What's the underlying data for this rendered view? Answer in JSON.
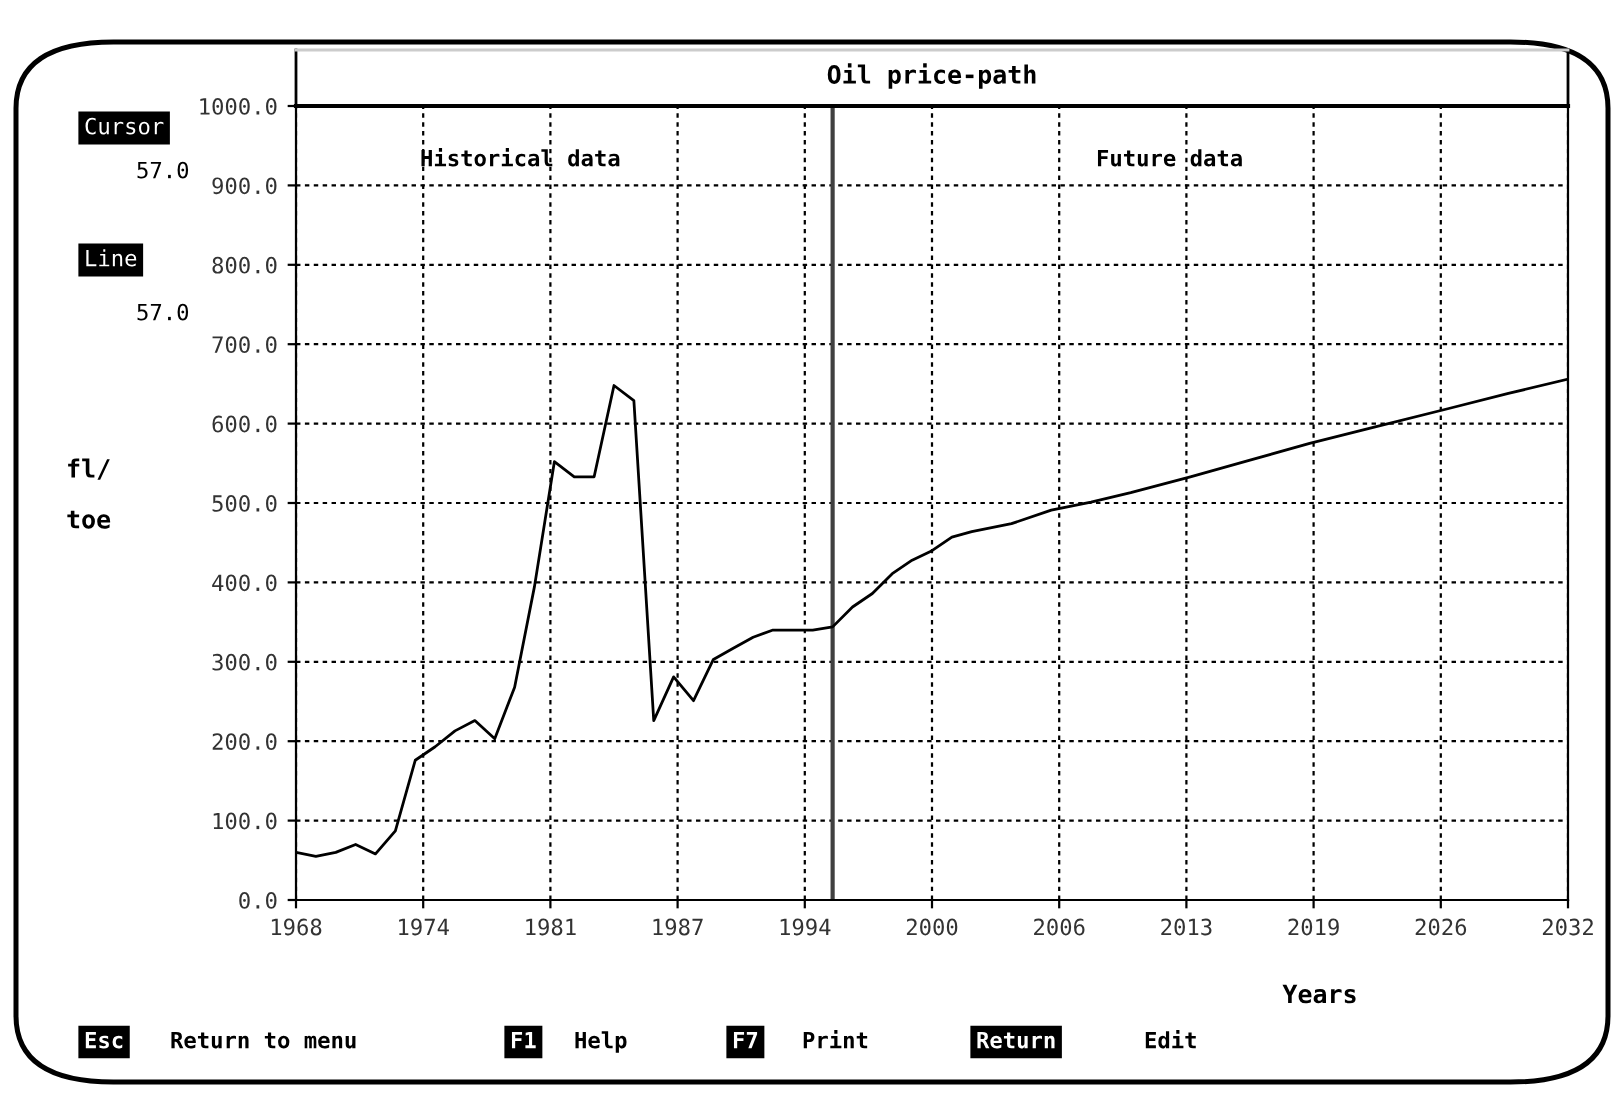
{
  "chart_data": {
    "type": "line",
    "title": "Oil price-path",
    "xlabel": "Years",
    "ylabel": "fl/\ntoe",
    "x": [
      1968,
      1969,
      1970,
      1971,
      1972,
      1973,
      1974,
      1975,
      1976,
      1977,
      1978,
      1979,
      1980,
      1981,
      1982,
      1983,
      1984,
      1985,
      1986,
      1987,
      1988,
      1989,
      1990,
      1991,
      1992,
      1993,
      1994,
      1995,
      1996,
      1997,
      1998,
      1999,
      2000,
      2001,
      2002,
      2004,
      2006,
      2008,
      2010,
      2013,
      2016,
      2019,
      2022,
      2026,
      2029,
      2032
    ],
    "series": [
      {
        "color": "#000000",
        "values": [
          60,
          55,
          60,
          70,
          58,
          87,
          176,
          193,
          213,
          226,
          203,
          268,
          395,
          552,
          533,
          533,
          648,
          629,
          226,
          281,
          251,
          303,
          317,
          331,
          340,
          340,
          340,
          344,
          369,
          386,
          411,
          428,
          440,
          457,
          464,
          474,
          491,
          501,
          513,
          533,
          554,
          575,
          594,
          619,
          638,
          656
        ]
      }
    ],
    "xlim": [
      1968,
      2032
    ],
    "xticks": [
      {
        "value": 1968,
        "label": "1968"
      },
      {
        "value": 1974.4,
        "label": "1974"
      },
      {
        "value": 1980.8,
        "label": "1981"
      },
      {
        "value": 1987.2,
        "label": "1987"
      },
      {
        "value": 1993.6,
        "label": "1994"
      },
      {
        "value": 2000,
        "label": "2000"
      },
      {
        "value": 2006.4,
        "label": "2006"
      },
      {
        "value": 2012.8,
        "label": "2013"
      },
      {
        "value": 2019.2,
        "label": "2019"
      },
      {
        "value": 2025.6,
        "label": "2026"
      },
      {
        "value": 2032,
        "label": "2032"
      }
    ],
    "ylim": [
      0,
      1000
    ],
    "yticks": [
      {
        "value": 0,
        "label": "0.0"
      },
      {
        "value": 100,
        "label": "100.0"
      },
      {
        "value": 200,
        "label": "200.0"
      },
      {
        "value": 300,
        "label": "300.0"
      },
      {
        "value": 400,
        "label": "400.0"
      },
      {
        "value": 500,
        "label": "500.0"
      },
      {
        "value": 600,
        "label": "600.0"
      },
      {
        "value": 700,
        "label": "700.0"
      },
      {
        "value": 800,
        "label": "800.0"
      },
      {
        "value": 900,
        "label": "900.0"
      },
      {
        "value": 1000,
        "label": "1000.0"
      }
    ],
    "ref_lines": [
      {
        "axis": "x",
        "value": 1995,
        "color": "#404040",
        "line_style": "solid"
      }
    ],
    "annotations": [
      "Historical data",
      "Future data",
      "Cursor",
      "57.0",
      "Line",
      "57.0",
      "Esc",
      "Return to menu",
      "F1",
      "Help",
      "F7",
      "Print",
      "Return",
      "Edit"
    ],
    "grid": true,
    "line_style": "solid",
    "marker": "none"
  }
}
